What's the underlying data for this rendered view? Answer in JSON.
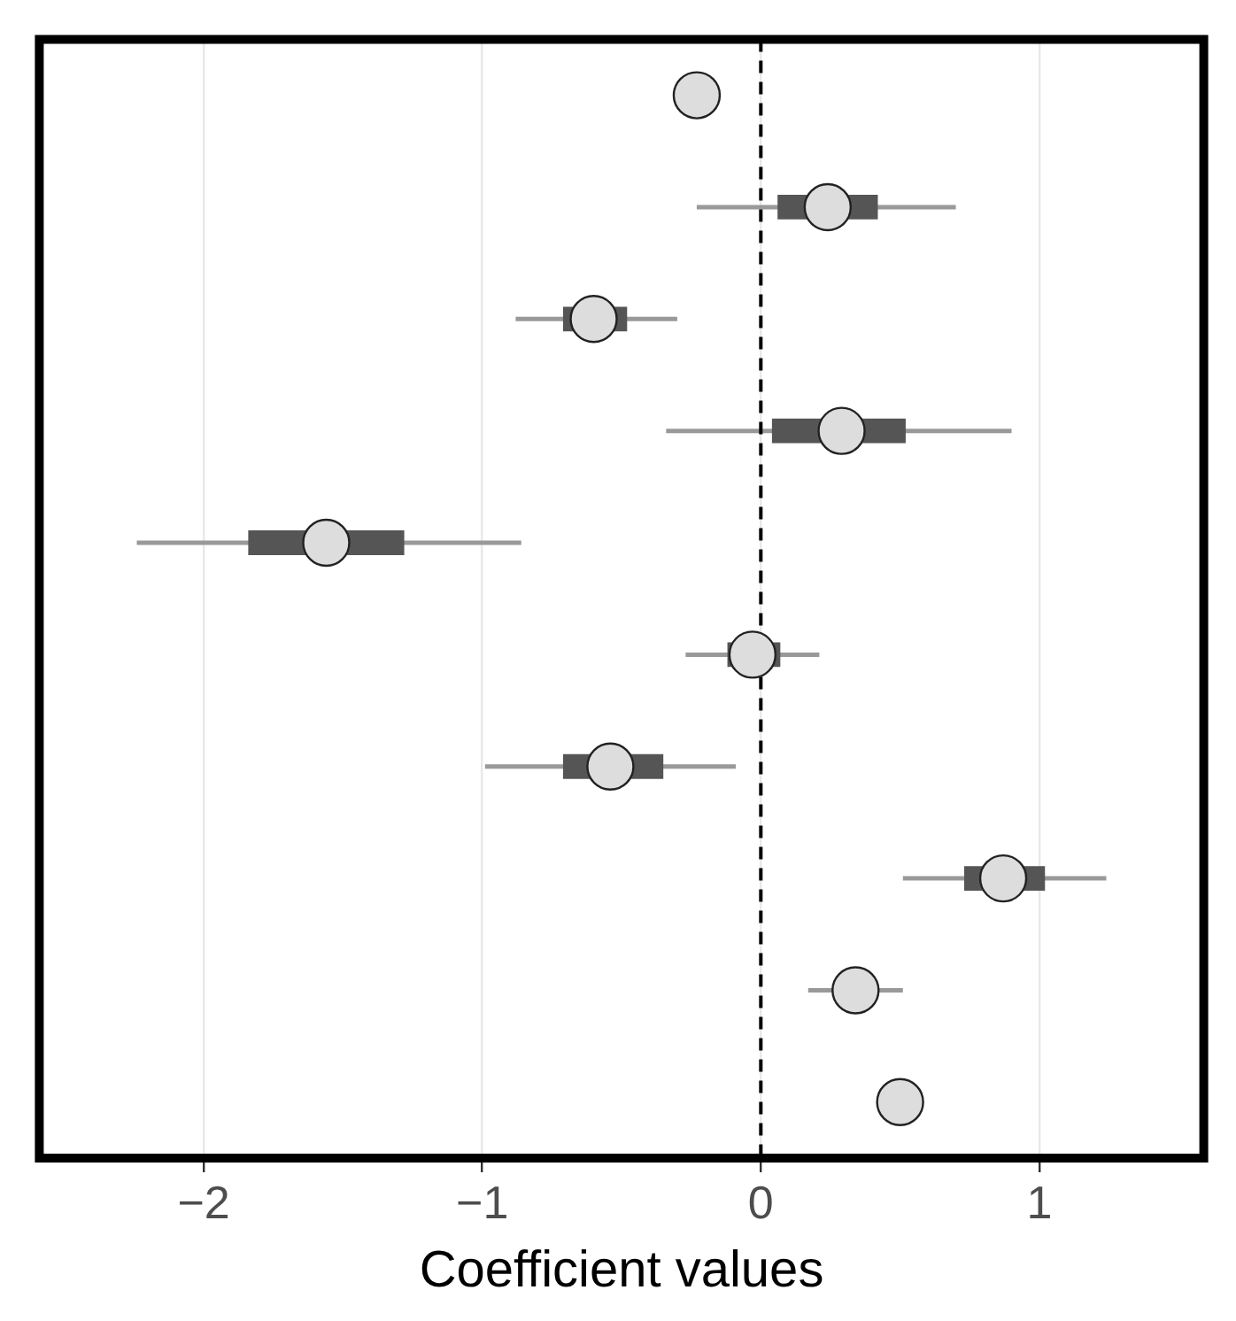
{
  "chart_data": {
    "type": "scatter",
    "orientation": "horizontal",
    "xlabel": "Coefficient values",
    "categories": [
      null,
      null,
      null,
      null,
      null,
      null,
      null,
      null,
      null,
      null
    ],
    "series": [
      {
        "type": "bar",
        "color": "#555555",
        "base": [
          null,
          0.06,
          -0.71,
          0.04,
          -1.84,
          -0.12,
          -0.71,
          0.73,
          null,
          null
        ],
        "values": [
          null,
          0.36,
          0.23,
          0.48,
          0.56,
          0.19,
          0.36,
          0.29,
          null,
          null
        ]
      },
      {
        "type": "scatter",
        "color": "#dddddd",
        "values": [
          -0.23,
          0.24,
          -0.6,
          0.29,
          -1.56,
          -0.03,
          -0.54,
          0.87,
          0.34,
          0.5
        ],
        "errors": [
          null,
          [
            -0.23,
            0.7
          ],
          [
            -0.88,
            -0.3
          ],
          [
            -0.34,
            0.9
          ],
          [
            -2.24,
            -0.86
          ],
          [
            -0.27,
            0.21
          ],
          [
            -0.99,
            -0.09
          ],
          [
            0.51,
            1.24
          ],
          [
            0.17,
            0.51
          ],
          null
        ]
      }
    ],
    "xlim": [
      -2.59,
      1.59
    ],
    "xticks": [
      {
        "value": -2,
        "label": "−2"
      },
      {
        "value": -1,
        "label": "−1"
      },
      0,
      1
    ],
    "ref_lines": [
      {
        "axis": "x",
        "value": 0,
        "line_style": "dashed",
        "color": "#000000"
      }
    ],
    "grid": "x",
    "legend": false,
    "tick_labels": "x",
    "marker": "circle"
  }
}
